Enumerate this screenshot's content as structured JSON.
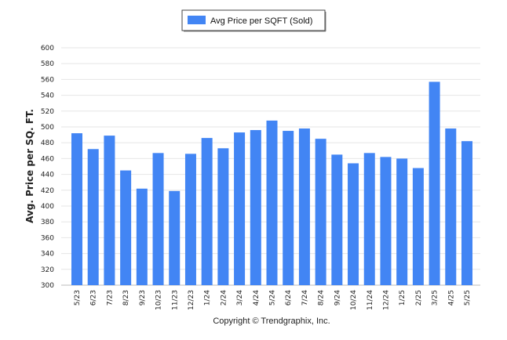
{
  "chart_data": {
    "type": "bar",
    "categories": [
      "5/23",
      "6/23",
      "7/23",
      "8/23",
      "9/23",
      "10/23",
      "11/23",
      "12/23",
      "1/24",
      "2/24",
      "3/24",
      "4/24",
      "5/24",
      "6/24",
      "7/24",
      "8/24",
      "9/24",
      "10/24",
      "11/24",
      "12/24",
      "1/25",
      "2/25",
      "3/25",
      "4/25",
      "5/25"
    ],
    "series": [
      {
        "name": "Avg Price per SQFT (Sold)",
        "values": [
          492,
          472,
          489,
          445,
          422,
          467,
          419,
          466,
          486,
          473,
          493,
          496,
          508,
          495,
          498,
          485,
          465,
          454,
          467,
          462,
          460,
          448,
          557,
          498,
          482
        ]
      }
    ],
    "ylabel": "Avg. Price per SQ. FT.",
    "ylim": [
      300,
      600
    ],
    "yticks": [
      300,
      320,
      340,
      360,
      380,
      400,
      420,
      440,
      460,
      480,
      500,
      520,
      540,
      560,
      580,
      600
    ],
    "grid": true,
    "legend_position": "top-center",
    "bar_color": "#4285f4",
    "footer": "Copyright © Trendgraphix, Inc."
  }
}
